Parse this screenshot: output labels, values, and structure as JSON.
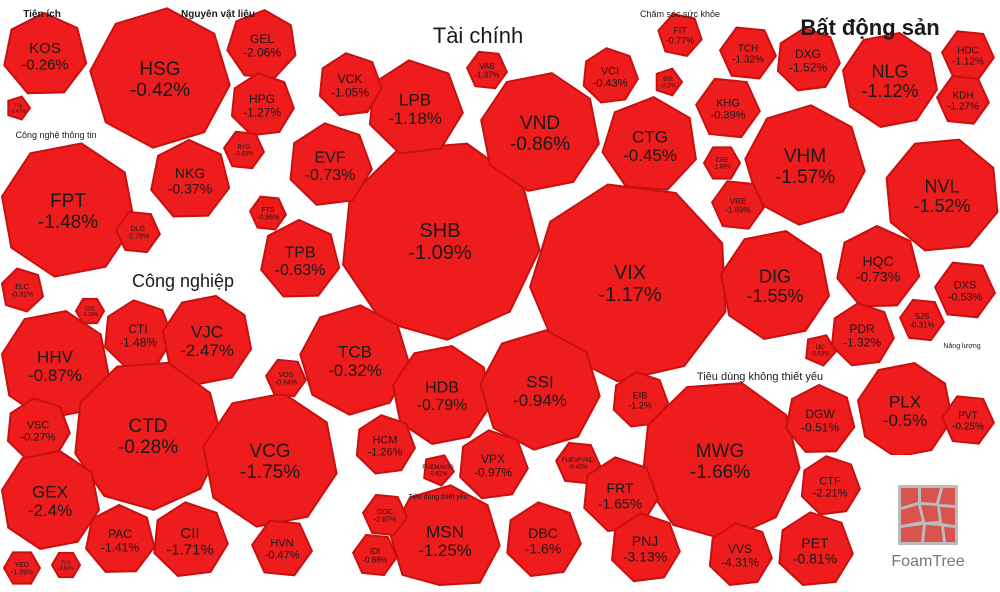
{
  "chart_data": {
    "type": "treemap",
    "title": "",
    "color_scale": {
      "negative": "#ee1c1c",
      "border": "#c81010",
      "background": "#ffffff"
    },
    "groups": [
      {
        "name": "Tiện ích",
        "stocks": [
          {
            "ticker": "KOS",
            "change": "-0.26%"
          },
          {
            "ticker": "TTA",
            "change": "-0.47%"
          }
        ]
      },
      {
        "name": "Nguyên vật liệu",
        "stocks": [
          {
            "ticker": "HSG",
            "change": "-0.42%"
          },
          {
            "ticker": "GEL",
            "change": "-2.06%"
          },
          {
            "ticker": "HPG",
            "change": "-1.27%"
          },
          {
            "ticker": "NKG",
            "change": "-0.37%"
          },
          {
            "ticker": "RYG",
            "change": "-0.83%"
          }
        ]
      },
      {
        "name": "Công nghệ thông tin",
        "stocks": [
          {
            "ticker": "FPT",
            "change": "-1.48%"
          },
          {
            "ticker": "DLG",
            "change": "-2.78%"
          },
          {
            "ticker": "ELC",
            "change": "-0.31%"
          }
        ]
      },
      {
        "name": "Công nghiệp",
        "stocks": [
          {
            "ticker": "HHV",
            "change": "-0.87%"
          },
          {
            "ticker": "CTI",
            "change": "-1.48%"
          },
          {
            "ticker": "VJC",
            "change": "-2.47%"
          },
          {
            "ticker": "CTD",
            "change": "-0.28%"
          },
          {
            "ticker": "VCG",
            "change": "-1.75%"
          },
          {
            "ticker": "VSC",
            "change": "-0.27%"
          },
          {
            "ticker": "GEX",
            "change": "-2.4%"
          },
          {
            "ticker": "PAC",
            "change": "-1.41%"
          },
          {
            "ticker": "CII",
            "change": "-1.71%"
          },
          {
            "ticker": "HVN",
            "change": "-0.47%"
          },
          {
            "ticker": "VOS",
            "change": "-0.84%"
          },
          {
            "ticker": "CDC",
            "change": "-2.13%"
          },
          {
            "ticker": "YEG",
            "change": "-1.39%"
          },
          {
            "ticker": "TLG",
            "change": "-0.62%"
          }
        ]
      },
      {
        "name": "Tài chính",
        "stocks": [
          {
            "ticker": "SHB",
            "change": "-1.09%"
          },
          {
            "ticker": "VIX",
            "change": "-1.17%"
          },
          {
            "ticker": "VND",
            "change": "-0.86%"
          },
          {
            "ticker": "LPB",
            "change": "-1.18%"
          },
          {
            "ticker": "CTG",
            "change": "-0.45%"
          },
          {
            "ticker": "EVF",
            "change": "-0.73%"
          },
          {
            "ticker": "TPB",
            "change": "-0.63%"
          },
          {
            "ticker": "TCB",
            "change": "-0.32%"
          },
          {
            "ticker": "HDB",
            "change": "-0.79%"
          },
          {
            "ticker": "SSI",
            "change": "-0.94%"
          },
          {
            "ticker": "VCK",
            "change": "-1.05%"
          },
          {
            "ticker": "VAB",
            "change": "-1.37%"
          },
          {
            "ticker": "VCI",
            "change": "-0.43%"
          },
          {
            "ticker": "BSI",
            "change": "-0.3%"
          },
          {
            "ticker": "FTS",
            "change": "-0.86%"
          },
          {
            "ticker": "HCM",
            "change": "-1.26%"
          },
          {
            "ticker": "VPX",
            "change": "-0.97%"
          },
          {
            "ticker": "EIB",
            "change": "-1.2%"
          },
          {
            "ticker": "FUEVFVND",
            "change": "-0.45%"
          },
          {
            "ticker": "FUEMAV30",
            "change": "-0.62%"
          }
        ]
      },
      {
        "name": "Chăm sóc sức khỏe",
        "stocks": [
          {
            "ticker": "FIT",
            "change": "-0.77%"
          }
        ]
      },
      {
        "name": "Bất động sản",
        "stocks": [
          {
            "ticker": "NLG",
            "change": "-1.12%"
          },
          {
            "ticker": "VHM",
            "change": "-1.57%"
          },
          {
            "ticker": "NVL",
            "change": "-1.52%"
          },
          {
            "ticker": "DIG",
            "change": "-1.55%"
          },
          {
            "ticker": "TCH",
            "change": "-1.32%"
          },
          {
            "ticker": "DXG",
            "change": "-1.52%"
          },
          {
            "ticker": "HDC",
            "change": "-1.12%"
          },
          {
            "ticker": "KHG",
            "change": "-0.39%"
          },
          {
            "ticker": "KDH",
            "change": "-1.27%"
          },
          {
            "ticker": "VRE",
            "change": "-1.69%"
          },
          {
            "ticker": "CRE",
            "change": "-1.85%"
          },
          {
            "ticker": "HQC",
            "change": "-0.73%"
          },
          {
            "ticker": "DXS",
            "change": "-0.53%"
          },
          {
            "ticker": "SJS",
            "change": "-0.31%"
          },
          {
            "ticker": "PDR",
            "change": "-1.32%"
          },
          {
            "ticker": "IJC",
            "change": "-0.53%"
          }
        ]
      },
      {
        "name": "Năng lượng",
        "stocks": [
          {
            "ticker": "PLX",
            "change": "-0.5%"
          },
          {
            "ticker": "PVT",
            "change": "-0.25%"
          }
        ]
      },
      {
        "name": "Tiêu dùng không thiết yếu",
        "stocks": [
          {
            "ticker": "MWG",
            "change": "-1.66%"
          },
          {
            "ticker": "DGW",
            "change": "-0.51%"
          },
          {
            "ticker": "CTF",
            "change": "-2.21%"
          },
          {
            "ticker": "FRT",
            "change": "-1.65%"
          },
          {
            "ticker": "PNJ",
            "change": "-3.13%"
          },
          {
            "ticker": "VVS",
            "change": "-4.31%"
          },
          {
            "ticker": "PET",
            "change": "-0.81%"
          }
        ]
      },
      {
        "name": "Tiêu dùng thiết yếu",
        "stocks": [
          {
            "ticker": "MSN",
            "change": "-1.25%"
          },
          {
            "ticker": "DBC",
            "change": "-1.6%"
          },
          {
            "ticker": "OGC",
            "change": "-2.67%"
          },
          {
            "ticker": "IDI",
            "change": "-0.88%"
          }
        ]
      }
    ]
  },
  "branding": {
    "logo_text": "FoamTree"
  }
}
